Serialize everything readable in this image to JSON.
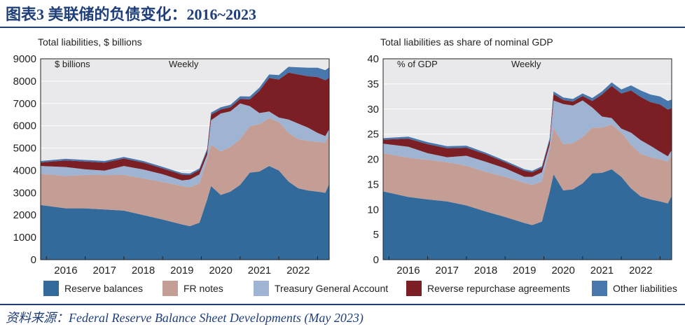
{
  "figure": {
    "title": "图表3 美联储的负债变化：2016~2023",
    "source": "资料来源：Federal Reserve Balance Sheet Developments (May 2023)"
  },
  "colors": {
    "reserve": "#336a9c",
    "fr_notes": "#c49e94",
    "tga": "#9fb4d2",
    "rrp": "#7b1f24",
    "other": "#4777ac",
    "panel_bg": "#e9e8ea"
  },
  "legend": [
    {
      "label": "Reserve balances",
      "color": "#336a9c"
    },
    {
      "label": "FR notes",
      "color": "#c49e94"
    },
    {
      "label": "Treasury General Account",
      "color": "#9fb4d2"
    },
    {
      "label": "Reverse repurchase agreements",
      "color": "#7b1f24"
    },
    {
      "label": "Other liabilities",
      "color": "#4777ac"
    }
  ],
  "chart_data": [
    {
      "type": "area",
      "stacked": true,
      "title": "Total liabilities, $ billions",
      "unit_label": "$ billions",
      "frequency_label": "Weekly",
      "ylim": [
        0,
        9000
      ],
      "yticks": [
        "0",
        "1000",
        "2000",
        "3000",
        "4000",
        "5000",
        "6000",
        "7000",
        "8000",
        "9000"
      ],
      "xticks": [
        "2016",
        "2017",
        "2018",
        "2019",
        "2020",
        "2021",
        "2022"
      ],
      "x": [
        2015.85,
        2016.5,
        2017.0,
        2017.5,
        2018.0,
        2018.5,
        2019.0,
        2019.5,
        2019.7,
        2019.95,
        2020.15,
        2020.25,
        2020.5,
        2020.75,
        2021.0,
        2021.25,
        2021.5,
        2021.75,
        2022.0,
        2022.25,
        2022.5,
        2022.75,
        2023.0,
        2023.2,
        2023.3
      ],
      "series": [
        {
          "name": "Reserve balances",
          "values": [
            2450,
            2300,
            2300,
            2250,
            2200,
            2000,
            1800,
            1580,
            1500,
            1660,
            2700,
            3300,
            2900,
            3050,
            3350,
            3900,
            3950,
            4200,
            4000,
            3500,
            3200,
            3100,
            3050,
            3000,
            3400
          ]
        },
        {
          "name": "FR notes",
          "values": [
            1400,
            1450,
            1500,
            1540,
            1600,
            1640,
            1680,
            1720,
            1740,
            1760,
            1800,
            1850,
            1950,
            2000,
            2050,
            2080,
            2120,
            2140,
            2170,
            2180,
            2200,
            2220,
            2230,
            2240,
            2250
          ]
        },
        {
          "name": "Treasury General Account",
          "values": [
            350,
            400,
            250,
            200,
            400,
            400,
            350,
            250,
            350,
            400,
            200,
            1100,
            1700,
            1600,
            1600,
            900,
            500,
            300,
            200,
            600,
            700,
            600,
            400,
            300,
            200
          ]
        },
        {
          "name": "Reverse repurchase agreements",
          "values": [
            160,
            300,
            350,
            360,
            330,
            310,
            260,
            260,
            200,
            200,
            190,
            250,
            180,
            180,
            200,
            300,
            1000,
            1500,
            1700,
            2100,
            2200,
            2300,
            2500,
            2500,
            2300
          ]
        },
        {
          "name": "Other liabilities",
          "values": [
            60,
            70,
            70,
            70,
            70,
            70,
            70,
            70,
            70,
            70,
            80,
            90,
            100,
            110,
            120,
            130,
            140,
            160,
            200,
            260,
            320,
            380,
            420,
            450,
            460
          ]
        }
      ]
    },
    {
      "type": "area",
      "stacked": true,
      "title": "Total liabilities as share of nominal GDP",
      "unit_label": "% of GDP",
      "frequency_label": "Weekly",
      "ylim": [
        0,
        40
      ],
      "yticks": [
        "0",
        "5",
        "10",
        "15",
        "20",
        "25",
        "30",
        "35",
        "40"
      ],
      "xticks": [
        "2016",
        "2017",
        "2018",
        "2019",
        "2020",
        "2021",
        "2022"
      ],
      "x": [
        2015.85,
        2016.5,
        2017.0,
        2017.5,
        2018.0,
        2018.5,
        2019.0,
        2019.5,
        2019.7,
        2019.95,
        2020.15,
        2020.25,
        2020.5,
        2020.75,
        2021.0,
        2021.25,
        2021.5,
        2021.75,
        2022.0,
        2022.25,
        2022.5,
        2022.75,
        2023.0,
        2023.2,
        2023.3
      ],
      "series": [
        {
          "name": "Reserve balances",
          "values": [
            13.6,
            12.5,
            12.0,
            11.6,
            10.8,
            9.6,
            8.5,
            7.3,
            6.9,
            7.6,
            13.5,
            17.0,
            13.8,
            14.0,
            15.2,
            17.2,
            17.3,
            18.0,
            16.5,
            14.2,
            12.6,
            12.0,
            11.6,
            11.2,
            12.7
          ]
        },
        {
          "name": "FR notes",
          "values": [
            7.6,
            7.8,
            7.9,
            7.8,
            7.9,
            7.9,
            8.0,
            8.0,
            8.0,
            8.0,
            8.4,
            9.2,
            9.2,
            9.2,
            9.2,
            9.1,
            9.0,
            8.9,
            8.8,
            8.7,
            8.5,
            8.4,
            8.4,
            8.3,
            8.3
          ]
        },
        {
          "name": "Treasury General Account",
          "values": [
            1.9,
            2.2,
            1.3,
            1.0,
            2.0,
            2.0,
            1.7,
            1.2,
            1.6,
            1.8,
            1.0,
            5.5,
            8.0,
            7.5,
            7.3,
            4.0,
            2.2,
            1.3,
            0.8,
            2.4,
            2.7,
            2.3,
            1.5,
            1.1,
            0.8
          ]
        },
        {
          "name": "Reverse repurchase agreements",
          "values": [
            0.8,
            1.6,
            1.8,
            1.8,
            1.6,
            1.5,
            1.2,
            1.2,
            0.9,
            0.9,
            0.9,
            1.3,
            0.8,
            0.8,
            0.9,
            1.3,
            4.4,
            6.4,
            7.0,
            8.4,
            8.6,
            8.7,
            9.4,
            9.3,
            8.4
          ]
        },
        {
          "name": "Other liabilities",
          "values": [
            0.3,
            0.4,
            0.4,
            0.4,
            0.4,
            0.3,
            0.3,
            0.3,
            0.3,
            0.3,
            0.4,
            0.5,
            0.5,
            0.5,
            0.5,
            0.6,
            0.6,
            0.7,
            0.8,
            1.0,
            1.3,
            1.5,
            1.6,
            1.7,
            1.7
          ]
        }
      ]
    }
  ]
}
